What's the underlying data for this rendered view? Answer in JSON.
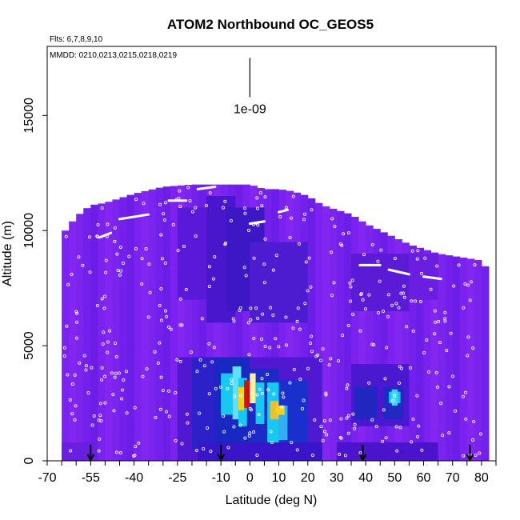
{
  "chart_data": {
    "type": "heatmap",
    "title": "ATOM2 Northbound OC_GEOS5",
    "subtitle_flights": "Flts: 6,7,8,9,10",
    "subtitle_dates": "MMDD: 0210,0213,0215,0218,0219",
    "xlabel": "Latitude (deg N)",
    "ylabel": "Altitude (m)",
    "xlim": [
      -70,
      85
    ],
    "ylim": [
      0,
      18000
    ],
    "x_ticks": [
      -70,
      -60,
      -55,
      -50,
      -40,
      -30,
      -25,
      -20,
      -10,
      -5,
      0,
      5,
      10,
      15,
      20,
      30,
      40,
      50,
      60,
      70,
      80
    ],
    "x_tick_labels": [
      {
        "value": -70,
        "label": "-70"
      },
      {
        "value": -55,
        "label": "-55"
      },
      {
        "value": -40,
        "label": "-40"
      },
      {
        "value": -25,
        "label": "-25"
      },
      {
        "value": -10,
        "label": "-10"
      },
      {
        "value": 0,
        "label": "0"
      },
      {
        "value": 10,
        "label": "10"
      },
      {
        "value": 20,
        "label": "20"
      },
      {
        "value": 30,
        "label": "30"
      },
      {
        "value": 40,
        "label": "40"
      },
      {
        "value": 50,
        "label": "50"
      },
      {
        "value": 60,
        "label": "60"
      },
      {
        "value": 70,
        "label": "70"
      },
      {
        "value": 80,
        "label": "80"
      }
    ],
    "y_ticks": [
      0,
      5000,
      10000,
      15000
    ],
    "y_tick_labels": [
      "0",
      "5000",
      "10000",
      "15000"
    ],
    "reference_label": "1e-09",
    "reference_x": 0,
    "reference_y_range": [
      15800,
      17500
    ],
    "arrows_lat": [
      -55,
      -10,
      39,
      76
    ],
    "colors": {
      "background_field": "#7b22f0",
      "low": "#5a14d6",
      "mid": "#1e28c8",
      "cyan": "#18c8f0",
      "warm": "#f5d020",
      "hot": "#d01010"
    }
  }
}
